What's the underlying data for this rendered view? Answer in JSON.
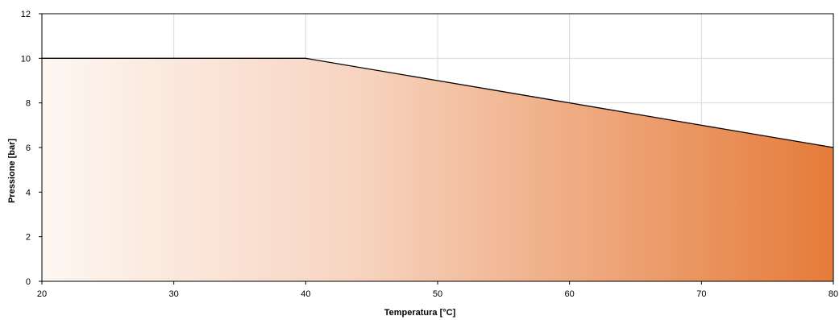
{
  "chart_data": {
    "type": "area",
    "xlabel": "Temperatura [°C]",
    "ylabel": "Pressione [bar]",
    "xlim": [
      20,
      80
    ],
    "ylim": [
      0,
      12
    ],
    "xticks": [
      20,
      30,
      40,
      50,
      60,
      70,
      80
    ],
    "yticks": [
      0,
      2,
      4,
      6,
      8,
      10,
      12
    ],
    "grid": true,
    "series": [
      {
        "x": [
          20,
          40,
          50,
          60,
          70,
          80
        ],
        "y": [
          10,
          10,
          9,
          8,
          7,
          6
        ]
      }
    ],
    "colors": {
      "fill_start": "#fdf7f2",
      "fill_mid": "#f7d4c0",
      "fill_end": "#e57b39",
      "line": "#000000",
      "grid": "#d9d9d9"
    }
  }
}
